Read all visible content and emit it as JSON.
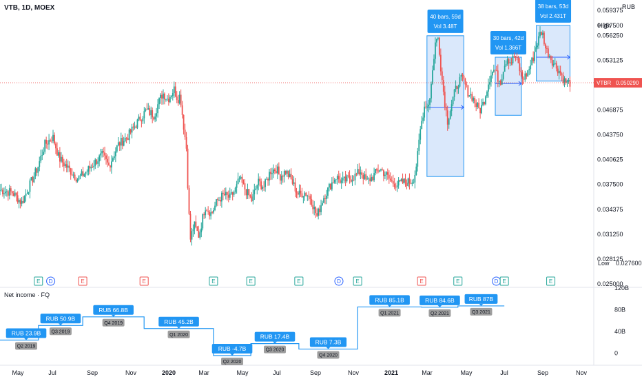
{
  "header": {
    "title": "VTB, 1D, MOEX",
    "currency": "RUB"
  },
  "colors": {
    "up": "#26a69a",
    "down": "#ef5350",
    "accent": "#2196f3",
    "range_fill": "#bbd6f7",
    "grey_label": "#9e9e9e",
    "price_line": "#ef5350"
  },
  "chart_data": [
    {
      "type": "candlestick",
      "title": "VTB, 1D, MOEX",
      "ylabel": "RUB",
      "ylim": [
        0.025,
        0.06
      ],
      "y_ticks": [
        "0.059375",
        "0.057500",
        "0.056250",
        "0.053125",
        "0.046875",
        "0.043750",
        "0.040625",
        "0.037500",
        "0.034375",
        "0.031250",
        "0.028125",
        "0.025000"
      ],
      "y_tick_values": [
        0.059375,
        0.0575,
        0.05625,
        0.053125,
        0.046875,
        0.04375,
        0.040625,
        0.0375,
        0.034375,
        0.03125,
        0.028125,
        0.025
      ],
      "x_ticks": [
        "May",
        "Jul",
        "Sep",
        "Nov",
        "2020",
        "Mar",
        "May",
        "Jul",
        "Sep",
        "Nov",
        "2021",
        "Mar",
        "May",
        "Jul",
        "Sep",
        "Nov"
      ],
      "x_tick_days": [
        0,
        61,
        123,
        184,
        245,
        305,
        366,
        427,
        489,
        550,
        611,
        670,
        731,
        792,
        854,
        915
      ],
      "key_closes_days": [
        0,
        20,
        35,
        50,
        60,
        72,
        85,
        95,
        110,
        125,
        140,
        155,
        165,
        175,
        190,
        205,
        220,
        235,
        248,
        255,
        262,
        270,
        280,
        286,
        290,
        292,
        296,
        300,
        303,
        306,
        312,
        320,
        330,
        340,
        350,
        360,
        370,
        380,
        385,
        395,
        405,
        415,
        425,
        435,
        445,
        450,
        460,
        470,
        480,
        490,
        500,
        505,
        510,
        520,
        530,
        540,
        550,
        560,
        570,
        580,
        590,
        600,
        610,
        615,
        620,
        630,
        640,
        650,
        660,
        665,
        668,
        672,
        676,
        680,
        684,
        688,
        692,
        696,
        700,
        705,
        710,
        715,
        720,
        726,
        732,
        738,
        745,
        752,
        760,
        766,
        772,
        778,
        784,
        790,
        796,
        800,
        806,
        810,
        816,
        822,
        828,
        834,
        840,
        846,
        852,
        858,
        862,
        866,
        870,
        874,
        878,
        884,
        890,
        896,
        902,
        908,
        913,
        917
      ],
      "key_closes": [
        0.0368,
        0.0365,
        0.0352,
        0.0378,
        0.0395,
        0.0425,
        0.0435,
        0.0408,
        0.0395,
        0.0382,
        0.0392,
        0.0405,
        0.0412,
        0.0398,
        0.0425,
        0.0435,
        0.0452,
        0.0468,
        0.0462,
        0.0478,
        0.049,
        0.0482,
        0.0495,
        0.0482,
        0.0488,
        0.0472,
        0.0445,
        0.042,
        0.0355,
        0.0305,
        0.0325,
        0.031,
        0.0348,
        0.0338,
        0.0355,
        0.0362,
        0.0358,
        0.037,
        0.0382,
        0.0368,
        0.0355,
        0.0378,
        0.0372,
        0.0392,
        0.0395,
        0.0385,
        0.0392,
        0.0378,
        0.0362,
        0.0365,
        0.0358,
        0.0345,
        0.0335,
        0.0358,
        0.0372,
        0.0385,
        0.0378,
        0.0382,
        0.0385,
        0.0392,
        0.0378,
        0.0385,
        0.0395,
        0.0392,
        0.0388,
        0.0378,
        0.0375,
        0.0378,
        0.0378,
        0.0382,
        0.039,
        0.0412,
        0.0442,
        0.0462,
        0.0478,
        0.0472,
        0.0488,
        0.0518,
        0.0552,
        0.056,
        0.0515,
        0.0482,
        0.0455,
        0.0475,
        0.0492,
        0.0505,
        0.0508,
        0.0492,
        0.0485,
        0.0475,
        0.0468,
        0.0478,
        0.0498,
        0.0515,
        0.052,
        0.051,
        0.0505,
        0.0522,
        0.0535,
        0.0528,
        0.0538,
        0.0525,
        0.0508,
        0.0512,
        0.0522,
        0.0535,
        0.0548,
        0.0556,
        0.0568,
        0.0562,
        0.0545,
        0.0538,
        0.0528,
        0.0522,
        0.0515,
        0.0505,
        0.0503,
        0.0503
      ],
      "last_price": "0.050290",
      "last_price_label": "VTBR",
      "high": {
        "label": "High",
        "value": "0.057500"
      },
      "low": {
        "label": "Low",
        "value": "0.027600"
      },
      "event_markers": [
        {
          "day": 72,
          "kind": "E"
        },
        {
          "day": 95,
          "kind": "D"
        },
        {
          "day": 155,
          "kind": "E"
        },
        {
          "day": 270,
          "kind": "E"
        },
        {
          "day": 400,
          "kind": "E"
        },
        {
          "day": 470,
          "kind": "E"
        },
        {
          "day": 560,
          "kind": "E"
        },
        {
          "day": 635,
          "kind": "D"
        },
        {
          "day": 670,
          "kind": "E"
        },
        {
          "day": 790,
          "kind": "E"
        },
        {
          "day": 858,
          "kind": "E"
        },
        {
          "day": 930,
          "kind": "D"
        },
        {
          "day": 945,
          "kind": "E"
        },
        {
          "day": 1032,
          "kind": "E"
        }
      ],
      "ranges": [
        {
          "from_day": 800,
          "to_day": 869,
          "low": 0.0385,
          "high": 0.0562,
          "mid": 0.0472,
          "line1": "40 bars, 59d",
          "line2": "Vol 3.48T"
        },
        {
          "from_day": 928,
          "to_day": 977,
          "low": 0.0462,
          "high": 0.0535,
          "mid": 0.0502,
          "line1": "30 bars, 42d",
          "line2": "Vol 1.366T"
        },
        {
          "from_day": 1005,
          "to_day": 1068,
          "low": 0.0505,
          "high": 0.0575,
          "mid": 0.0535,
          "line1": "38 bars, 53d",
          "line2": "Vol 2.431T"
        }
      ]
    },
    {
      "type": "step",
      "title": "Net income · FQ",
      "ylim": [
        -20,
        120
      ],
      "y_ticks": [
        "120B",
        "80B",
        "40B",
        "0"
      ],
      "y_tick_values": [
        120,
        80,
        40,
        0
      ],
      "series": [
        {
          "period": "Q2 2019",
          "label": "RUB 23.9B",
          "value": 23.9
        },
        {
          "period": "Q3 2019",
          "label": "RUB 50.9B",
          "value": 50.9
        },
        {
          "period": "Q4 2019",
          "label": "RUB 66.8B",
          "value": 66.8
        },
        {
          "period": "Q1 2020",
          "label": "RUB 45.2B",
          "value": 45.2
        },
        {
          "period": "Q2 2020",
          "label": "RUB -4.7B",
          "value": -4.7
        },
        {
          "period": "Q3 2020",
          "label": "RUB 17.4B",
          "value": 17.4
        },
        {
          "period": "Q4 2020",
          "label": "RUB 7.3B",
          "value": 7.3
        },
        {
          "period": "Q1 2021",
          "label": "RUB 85.1B",
          "value": 85.1
        },
        {
          "period": "Q2 2021",
          "label": "RUB 84.6B",
          "value": 84.6
        },
        {
          "period": "Q3 2021",
          "label": "RUB 87B",
          "value": 87
        }
      ],
      "report_days": [
        -60,
        72,
        155,
        270,
        400,
        470,
        560,
        670,
        790,
        858,
        945,
        1032,
        1140
      ]
    }
  ]
}
